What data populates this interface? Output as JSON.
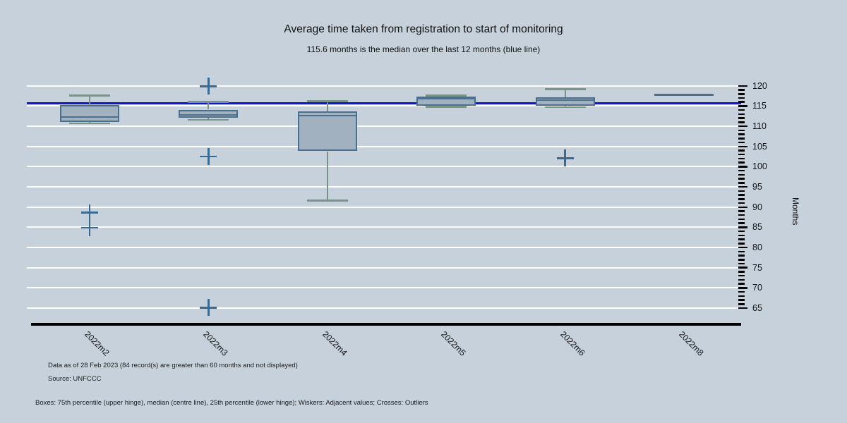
{
  "header": {
    "title": "Average time taken from registration to start of monitoring",
    "subtitle": "115.6 months is the median over the last 12 months (blue line)"
  },
  "chart_data": {
    "type": "box",
    "title": "Average time taken from registration to start of monitoring",
    "subtitle": "115.6 months is the median over the last 12 months (blue line)",
    "ylabel": "Months",
    "y_axis": {
      "min": 65,
      "max": 120,
      "major_step": 5,
      "minor_step": 1,
      "major_ticks": [
        65,
        70,
        75,
        80,
        85,
        90,
        95,
        100,
        105,
        110,
        115,
        120
      ],
      "grid": true
    },
    "reference_line": {
      "value": 115.6,
      "meaning": "median over the last 12 months"
    },
    "categories": [
      "2022m2",
      "2022m3",
      "2022m4",
      "2022m5",
      "2022m6",
      "2022m8"
    ],
    "boxes": [
      {
        "category": "2022m2",
        "upper_adjacent": 117.6,
        "p75": 115.2,
        "median": 112.3,
        "p25": 111.1,
        "lower_adjacent": 110.7,
        "outliers": [
          88.6,
          84.9
        ]
      },
      {
        "category": "2022m3",
        "upper_adjacent": 116.0,
        "p75": 114.1,
        "median": 112.8,
        "p25": 112.1,
        "lower_adjacent": 111.6,
        "outliers": [
          119.9,
          102.5,
          65.1
        ]
      },
      {
        "category": "2022m4",
        "upper_adjacent": 116.2,
        "p75": 113.7,
        "median": 112.7,
        "p25": 103.8,
        "lower_adjacent": 91.6,
        "outliers": []
      },
      {
        "category": "2022m5",
        "upper_adjacent": 117.6,
        "p75": 117.3,
        "median": 116.8,
        "p25": 115.1,
        "lower_adjacent": 114.8,
        "outliers": []
      },
      {
        "category": "2022m6",
        "upper_adjacent": 119.2,
        "p75": 117.2,
        "median": 116.5,
        "p25": 115.0,
        "lower_adjacent": 114.7,
        "outliers": [
          102.1
        ]
      },
      {
        "category": "2022m8",
        "upper_adjacent": 117.7,
        "p75": 117.7,
        "median": 117.7,
        "p25": 117.7,
        "lower_adjacent": 117.7,
        "outliers": []
      }
    ],
    "legend_position": "none"
  },
  "notes": {
    "data_as_of": "Data as of 28 Feb 2023 (84 record(s) are greater than 60 months and not displayed)",
    "source": "Source: UNFCCC",
    "legend": "Boxes: 75th percentile (upper hinge), median (centre line), 25th percentile (lower hinge); Wiskers: Adjacent values; Crosses: Outliers"
  },
  "colors": {
    "background": "#c6d1db",
    "gridline": "#ffffff",
    "reference_line": "#1216d4",
    "box_fill": "#a1b1bf",
    "box_border": "#4b6f8e",
    "whisker": "#7b9489",
    "outlier_cross": "#3a6a92",
    "axis": "#000000"
  }
}
